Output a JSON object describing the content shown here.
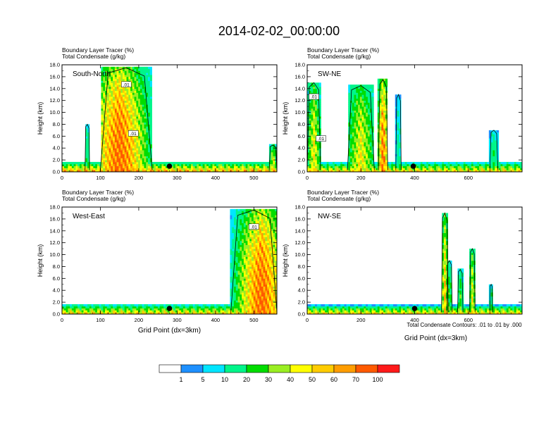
{
  "title": "2014-02-02_00:00:00",
  "colors": {
    "fill_levels": [
      "#ffffff",
      "#1e90ff",
      "#00e5ff",
      "#00f58a",
      "#00dd00",
      "#9aee22",
      "#ffff00",
      "#ffcc00",
      "#ff9d00",
      "#ff5a00",
      "#ff1a1a"
    ],
    "bg": "#ffffff",
    "contour": "#000000"
  },
  "colorbar": {
    "labels": [
      "1",
      "5",
      "10",
      "20",
      "30",
      "40",
      "50",
      "60",
      "70",
      "100"
    ]
  },
  "footnote": "Total Condensate Contours: .01 to .01 by .000",
  "chart_data": [
    {
      "type": "heatmap",
      "title": "South-North",
      "subtitle_lines": [
        "Boundary Layer Tracer   (%)",
        "Total Condensate   (g/kg)"
      ],
      "ylabel": "Height (km)",
      "xlabel": "",
      "xlim": [
        0,
        560
      ],
      "ylim": [
        0,
        18
      ],
      "xticks": [
        "0",
        "100",
        "200",
        "300",
        "400",
        "500"
      ],
      "yticks": [
        "0.0",
        "2.0",
        "4.0",
        "6.0",
        "8.0",
        "10.0",
        "12.0",
        "14.0",
        "16.0",
        "18.0"
      ],
      "marker_x": 280,
      "contour_labels": [
        ".01",
        ".01"
      ],
      "features": [
        {
          "x0": 0,
          "x1": 560,
          "top": 1.8,
          "peak": 80
        },
        {
          "x0": 100,
          "x1": 235,
          "top": 17.5,
          "peak": 100,
          "core": 150
        },
        {
          "x0": 60,
          "x1": 72,
          "top": 8.0,
          "peak": 30
        },
        {
          "x0": 540,
          "x1": 560,
          "top": 4.5,
          "peak": 60
        }
      ]
    },
    {
      "type": "heatmap",
      "title": "SW-NE",
      "subtitle_lines": [
        "Boundary Layer Tracer   (%)",
        "Total Condensate   (g/kg)"
      ],
      "ylabel": "Height (km)",
      "xlabel": "",
      "xlim": [
        0,
        800
      ],
      "ylim": [
        0,
        18
      ],
      "xticks": [
        "0",
        "200",
        "400",
        "600"
      ],
      "yticks": [
        "0.0",
        "2.0",
        "4.0",
        "6.0",
        "8.0",
        "10.0",
        "12.0",
        "14.0",
        "16.0",
        "18.0"
      ],
      "marker_x": 395,
      "contour_labels": [
        ".01",
        ".01"
      ],
      "features": [
        {
          "x0": 0,
          "x1": 800,
          "top": 1.6,
          "peak": 70
        },
        {
          "x0": 0,
          "x1": 50,
          "top": 15.0,
          "peak": 60
        },
        {
          "x0": 150,
          "x1": 250,
          "top": 14.5,
          "peak": 60
        },
        {
          "x0": 265,
          "x1": 300,
          "top": 15.5,
          "peak": 100
        },
        {
          "x0": 680,
          "x1": 710,
          "top": 7.0,
          "peak": 30
        },
        {
          "x0": 330,
          "x1": 350,
          "top": 13.0,
          "peak": 20
        }
      ]
    },
    {
      "type": "heatmap",
      "title": "West-East",
      "subtitle_lines": [
        "Boundary Layer Tracer   (%)",
        "Total Condensate   (g/kg)"
      ],
      "ylabel": "Height (km)",
      "xlabel": "Grid Point (dx=3km)",
      "xlim": [
        0,
        560
      ],
      "ylim": [
        0,
        18
      ],
      "xticks": [
        "0",
        "100",
        "200",
        "300",
        "400",
        "500"
      ],
      "yticks": [
        "0.0",
        "2.0",
        "4.0",
        "6.0",
        "8.0",
        "10.0",
        "12.0",
        "14.0",
        "16.0",
        "18.0"
      ],
      "marker_x": 280,
      "contour_labels": [
        ".01"
      ],
      "features": [
        {
          "x0": 0,
          "x1": 560,
          "top": 1.7,
          "peak": 70
        },
        {
          "x0": 440,
          "x1": 560,
          "top": 17.5,
          "peak": 100,
          "core": 520
        }
      ]
    },
    {
      "type": "heatmap",
      "title": "NW-SE",
      "subtitle_lines": [
        "Boundary Layer Tracer   (%)",
        "Total Condensate   (g/kg)"
      ],
      "ylabel": "Height (km)",
      "xlabel": "Grid Point (dx=3km)",
      "xlim": [
        0,
        800
      ],
      "ylim": [
        0,
        18
      ],
      "xticks": [
        "0",
        "200",
        "400",
        "600"
      ],
      "yticks": [
        "0.0",
        "2.0",
        "4.0",
        "6.0",
        "8.0",
        "10.0",
        "12.0",
        "14.0",
        "16.0",
        "18.0"
      ],
      "marker_x": 400,
      "contour_labels": [],
      "features": [
        {
          "x0": 0,
          "x1": 800,
          "top": 1.5,
          "peak": 70
        },
        {
          "x0": 500,
          "x1": 525,
          "top": 17.0,
          "peak": 70
        },
        {
          "x0": 605,
          "x1": 625,
          "top": 11.0,
          "peak": 60
        },
        {
          "x0": 520,
          "x1": 540,
          "top": 9.0,
          "peak": 40
        },
        {
          "x0": 560,
          "x1": 580,
          "top": 7.5,
          "peak": 40
        },
        {
          "x0": 680,
          "x1": 690,
          "top": 5.0,
          "peak": 40
        }
      ]
    }
  ]
}
